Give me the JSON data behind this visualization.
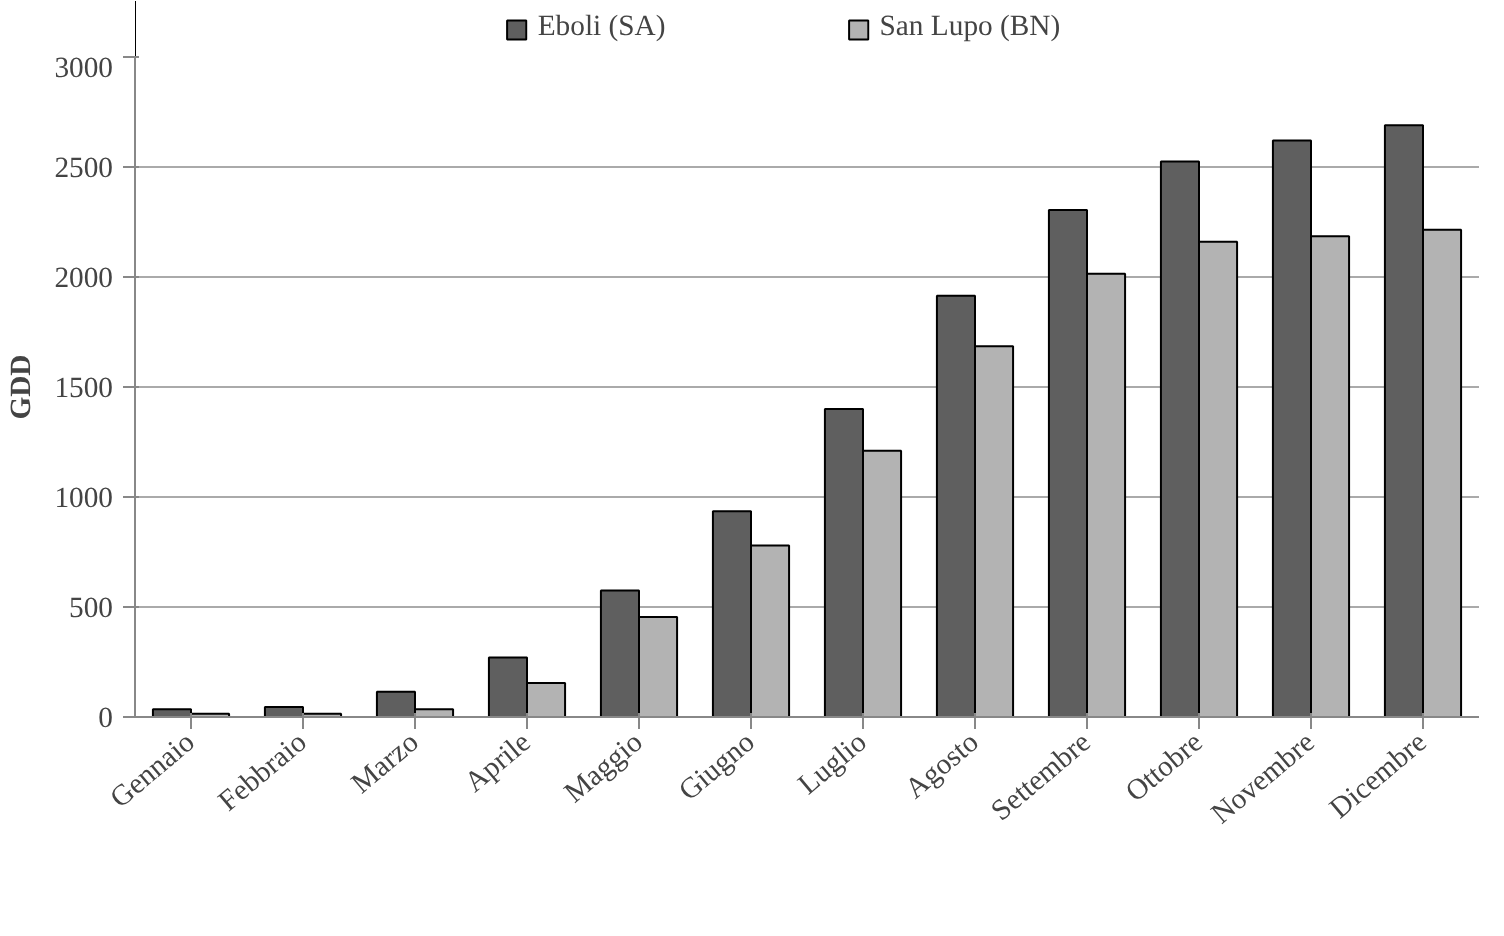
{
  "chart_data": {
    "type": "bar",
    "ylabel": "GDD",
    "categories": [
      "Gennaio",
      "Febbraio",
      "Marzo",
      "Aprile",
      "Maggio",
      "Giugno",
      "Luglio",
      "Agosto",
      "Settembre",
      "Ottobre",
      "Novembre",
      "Dicembre"
    ],
    "series": [
      {
        "name": "Eboli (SA)",
        "color": "#5f5f5f",
        "values": [
          35,
          45,
          115,
          270,
          575,
          935,
          1400,
          1915,
          2305,
          2525,
          2620,
          2690
        ]
      },
      {
        "name": "San Lupo (BN)",
        "color": "#b3b3b3",
        "values": [
          15,
          15,
          35,
          155,
          455,
          780,
          1210,
          1685,
          2015,
          2160,
          2185,
          2215
        ]
      }
    ],
    "ylim": [
      0,
      3000
    ],
    "yticks": [
      0,
      500,
      1000,
      1500,
      2000,
      2500,
      3000
    ],
    "grid": "y",
    "legend": "top"
  }
}
